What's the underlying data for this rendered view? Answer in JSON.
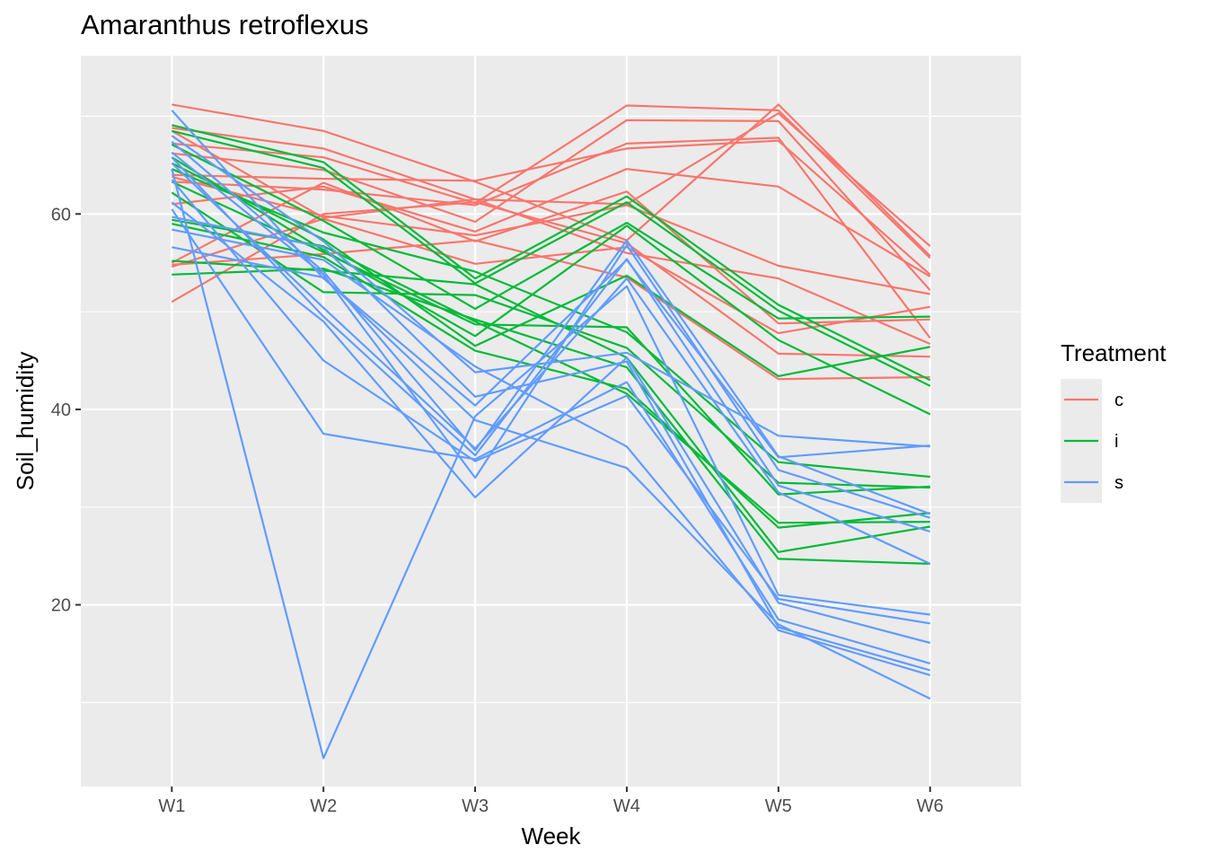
{
  "chart_data": {
    "type": "line",
    "title": "Amaranthus retroflexus",
    "xlabel": "Week",
    "ylabel": "Soil_humidity",
    "categories": [
      "W1",
      "W2",
      "W3",
      "W4",
      "W5",
      "W6"
    ],
    "ylim": [
      1.4,
      76.2
    ],
    "yticks": [
      20,
      40,
      60
    ],
    "grid": true,
    "legend": {
      "title": "Treatment",
      "position": "right",
      "entries": [
        {
          "label": "c",
          "color": "#F8766D"
        },
        {
          "label": "i",
          "color": "#00BA38"
        },
        {
          "label": "s",
          "color": "#619CFF"
        }
      ]
    },
    "series": [
      {
        "group": "c",
        "values": [
          71.2,
          68.5,
          63.3,
          57.3,
          71.2,
          55.7
        ]
      },
      {
        "group": "c",
        "values": [
          68.8,
          66.7,
          61.5,
          61.0,
          70.3,
          56.7
        ]
      },
      {
        "group": "c",
        "values": [
          67.2,
          65.8,
          61.1,
          71.1,
          70.6,
          55.5
        ]
      },
      {
        "group": "c",
        "values": [
          66.2,
          64.5,
          59.2,
          69.6,
          69.5,
          52.2
        ]
      },
      {
        "group": "c",
        "values": [
          64.0,
          63.6,
          63.4,
          66.7,
          67.5,
          53.8
        ]
      },
      {
        "group": "c",
        "values": [
          63.3,
          62.5,
          60.9,
          67.2,
          67.8,
          47.3
        ]
      },
      {
        "group": "c",
        "values": [
          61.0,
          62.8,
          58.2,
          64.6,
          62.8,
          53.6
        ]
      },
      {
        "group": "c",
        "values": [
          63.8,
          59.8,
          57.8,
          60.9,
          54.7,
          51.8
        ]
      },
      {
        "group": "c",
        "values": [
          55.0,
          63.2,
          57.2,
          62.3,
          48.8,
          49.2
        ]
      },
      {
        "group": "c",
        "values": [
          54.6,
          59.5,
          54.9,
          56.6,
          47.8,
          50.5
        ]
      },
      {
        "group": "c",
        "values": [
          51.0,
          60.0,
          61.2,
          57.0,
          45.7,
          45.4
        ]
      },
      {
        "group": "c",
        "values": [
          54.8,
          55.9,
          57.3,
          53.5,
          43.1,
          43.3
        ]
      },
      {
        "group": "c",
        "values": [
          68.5,
          59.6,
          61.5,
          56.0,
          53.4,
          46.7
        ]
      },
      {
        "group": "i",
        "values": [
          69.1,
          65.3,
          53.4,
          61.8,
          50.7,
          43.0
        ]
      },
      {
        "group": "i",
        "values": [
          68.5,
          64.7,
          52.9,
          61.2,
          50.1,
          42.4
        ]
      },
      {
        "group": "i",
        "values": [
          67.1,
          59.3,
          50.3,
          59.1,
          49.3,
          49.5
        ]
      },
      {
        "group": "i",
        "values": [
          65.8,
          56.3,
          47.5,
          58.8,
          47.1,
          39.5
        ]
      },
      {
        "group": "i",
        "values": [
          65.2,
          57.4,
          46.5,
          53.7,
          43.4,
          46.4
        ]
      },
      {
        "group": "i",
        "values": [
          64.6,
          58.1,
          54.1,
          47.9,
          34.6,
          33.1
        ]
      },
      {
        "group": "i",
        "values": [
          63.3,
          56.1,
          48.7,
          48.4,
          31.3,
          32.1
        ]
      },
      {
        "group": "i",
        "values": [
          62.2,
          52.0,
          51.7,
          46.3,
          32.5,
          32.0
        ]
      },
      {
        "group": "i",
        "values": [
          59.4,
          56.7,
          49.0,
          41.6,
          28.4,
          28.5
        ]
      },
      {
        "group": "i",
        "values": [
          59.0,
          55.6,
          46.0,
          42.1,
          27.9,
          29.4
        ]
      },
      {
        "group": "i",
        "values": [
          55.2,
          54.2,
          52.8,
          45.3,
          25.4,
          28.0
        ]
      },
      {
        "group": "i",
        "values": [
          53.8,
          54.4,
          49.2,
          44.3,
          24.7,
          24.2
        ]
      },
      {
        "group": "s",
        "values": [
          70.6,
          53.4,
          40.4,
          55.3,
          35.1,
          36.3
        ]
      },
      {
        "group": "s",
        "values": [
          68.0,
          57.2,
          43.8,
          45.8,
          37.3,
          36.2
        ]
      },
      {
        "group": "s",
        "values": [
          67.4,
          54.1,
          35.8,
          57.3,
          35.2,
          29.3
        ]
      },
      {
        "group": "s",
        "values": [
          66.3,
          53.8,
          33.0,
          56.8,
          33.8,
          28.9
        ]
      },
      {
        "group": "s",
        "values": [
          65.8,
          49.5,
          35.3,
          55.4,
          32.2,
          27.5
        ]
      },
      {
        "group": "s",
        "values": [
          65.2,
          50.4,
          36.0,
          53.4,
          31.5,
          24.2
        ]
      },
      {
        "group": "s",
        "values": [
          64.6,
          4.3,
          39.3,
          52.6,
          21.0,
          19.0
        ]
      },
      {
        "group": "s",
        "values": [
          63.5,
          45.0,
          34.7,
          41.4,
          20.6,
          18.1
        ]
      },
      {
        "group": "s",
        "values": [
          61.2,
          49.0,
          31.0,
          45.3,
          20.2,
          16.1
        ]
      },
      {
        "group": "s",
        "values": [
          60.5,
          37.5,
          34.9,
          42.8,
          18.5,
          14.0
        ]
      },
      {
        "group": "s",
        "values": [
          59.7,
          56.6,
          41.3,
          44.9,
          17.7,
          13.3
        ]
      },
      {
        "group": "s",
        "values": [
          58.4,
          55.3,
          44.4,
          36.2,
          17.4,
          12.8
        ]
      },
      {
        "group": "s",
        "values": [
          56.6,
          53.5,
          38.9,
          34.0,
          18.0,
          10.4
        ]
      }
    ]
  }
}
